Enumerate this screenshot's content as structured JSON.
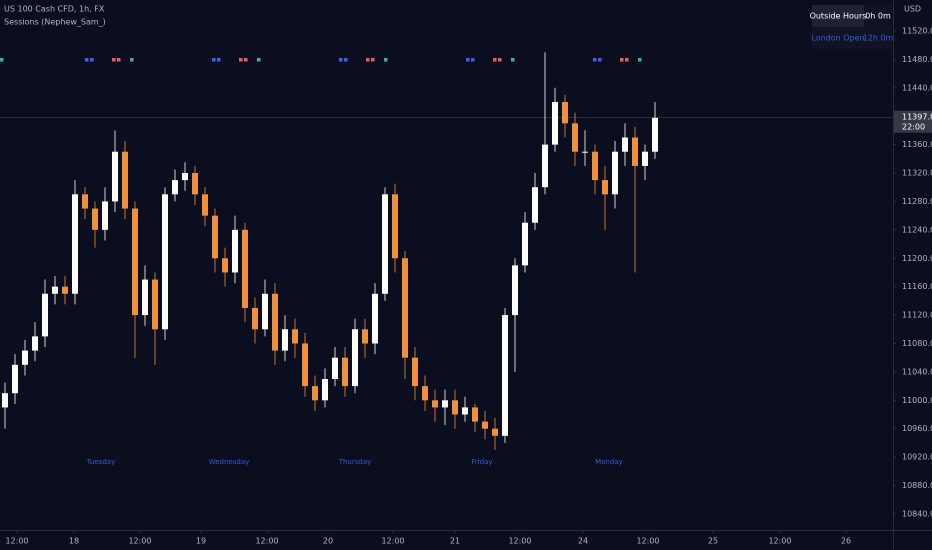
{
  "chart_data": {
    "type": "candlestick",
    "symbol": "US 100 Cash CFD, 1h, FX",
    "indicator": "Sessions (Nephew_Sam_)",
    "currency": "USD",
    "up_color": "#ffffff",
    "down_color": "#f0903a",
    "open": [
      10990,
      11010,
      11050,
      11070,
      11090,
      11150,
      11160,
      11150,
      11290,
      11270,
      11240,
      11280,
      11350,
      11270,
      11120,
      11170,
      11100,
      11290,
      11310,
      11320,
      11290,
      11260,
      11200,
      11180,
      11240,
      11130,
      11100,
      11150,
      11070,
      11100,
      11080,
      11020,
      11000,
      11030,
      11060,
      11020,
      11100,
      11080,
      11150,
      11290,
      11200,
      11060,
      11020,
      11000,
      10990,
      11000,
      10980,
      10990,
      10970,
      10960,
      10950,
      11120,
      11190,
      11250,
      11300,
      11360,
      11420,
      11390,
      11350,
      11350,
      11310,
      11290,
      11350,
      11370,
      11330,
      11350
    ],
    "high": [
      11025,
      11065,
      11085,
      11110,
      11170,
      11175,
      11175,
      11310,
      11300,
      11280,
      11300,
      11380,
      11365,
      11280,
      11190,
      11180,
      11300,
      11325,
      11335,
      11330,
      11300,
      11270,
      11215,
      11260,
      11250,
      11145,
      11170,
      11165,
      11120,
      11115,
      11095,
      11035,
      11045,
      11075,
      11075,
      11115,
      11115,
      11165,
      11300,
      11305,
      11210,
      11075,
      11035,
      11015,
      11015,
      11015,
      11005,
      10995,
      10985,
      10975,
      11130,
      11200,
      11265,
      11320,
      11490,
      11440,
      11430,
      11405,
      11380,
      11360,
      11330,
      11365,
      11390,
      11385,
      11360,
      11420
    ],
    "low": [
      10960,
      10995,
      11035,
      11055,
      11075,
      11135,
      11135,
      11135,
      11255,
      11215,
      11225,
      11265,
      11255,
      11060,
      11105,
      11050,
      11085,
      11280,
      11295,
      11275,
      11245,
      11180,
      11160,
      11165,
      11110,
      11080,
      11090,
      11050,
      11055,
      11060,
      11005,
      10985,
      10990,
      11020,
      11005,
      11010,
      11060,
      11065,
      11140,
      11180,
      11030,
      11000,
      10985,
      10970,
      10965,
      10960,
      10970,
      10955,
      10945,
      10930,
      10940,
      11040,
      11180,
      11240,
      11290,
      11350,
      11370,
      11330,
      11330,
      11290,
      11240,
      11270,
      11330,
      11180,
      11310,
      11340
    ],
    "close": [
      11010,
      11050,
      11070,
      11090,
      11150,
      11160,
      11150,
      11290,
      11270,
      11240,
      11280,
      11350,
      11270,
      11120,
      11170,
      11100,
      11290,
      11310,
      11320,
      11290,
      11260,
      11200,
      11180,
      11240,
      11130,
      11100,
      11150,
      11070,
      11100,
      11080,
      11020,
      11000,
      11030,
      11060,
      11020,
      11100,
      11080,
      11150,
      11290,
      11200,
      11060,
      11020,
      11000,
      10990,
      11000,
      10980,
      10990,
      10970,
      10960,
      10950,
      11120,
      11190,
      11250,
      11300,
      11360,
      11420,
      11390,
      11350,
      11350,
      11310,
      11290,
      11350,
      11370,
      11330,
      11350,
      11397.8
    ],
    "xlim": [
      -0.5,
      88.8
    ],
    "xticks": [
      {
        "value": 1.2,
        "label": "12:00"
      },
      {
        "value": 6.9,
        "label": "18"
      },
      {
        "value": 13.5,
        "label": "12:00"
      },
      {
        "value": 19.6,
        "label": "19"
      },
      {
        "value": 26.2,
        "label": "12:00"
      },
      {
        "value": 32.3,
        "label": "20"
      },
      {
        "value": 38.8,
        "label": "12:00"
      },
      {
        "value": 45,
        "label": "21"
      },
      {
        "value": 51.5,
        "label": "12:00"
      },
      {
        "value": 57.8,
        "label": "24"
      },
      {
        "value": 64.3,
        "label": "12:00"
      },
      {
        "value": 70.8,
        "label": "25"
      },
      {
        "value": 77.5,
        "label": "12:00"
      },
      {
        "value": 84.1,
        "label": "26"
      }
    ],
    "ylim": [
      10817.4,
      11563.6
    ],
    "yticks": [
      {
        "value": 10840,
        "label": "10840.00"
      },
      {
        "value": 10880,
        "label": "10880.00"
      },
      {
        "value": 10920,
        "label": "10920.00"
      },
      {
        "value": 10960,
        "label": "10960.00"
      },
      {
        "value": 11000,
        "label": "11000.00"
      },
      {
        "value": 11040,
        "label": "11040.00"
      },
      {
        "value": 11080,
        "label": "11080.00"
      },
      {
        "value": 11120,
        "label": "11120.00"
      },
      {
        "value": 11160,
        "label": "11160.00"
      },
      {
        "value": 11200,
        "label": "11200.00"
      },
      {
        "value": 11240,
        "label": "11240.00"
      },
      {
        "value": 11280,
        "label": "11280.00"
      },
      {
        "value": 11320,
        "label": "11320.00"
      },
      {
        "value": 11360,
        "label": "11360.00"
      },
      {
        "value": 11400,
        "label": "11400.00"
      },
      {
        "value": 11440,
        "label": "11440.00"
      },
      {
        "value": 11480,
        "label": "11480.00"
      },
      {
        "value": 11520,
        "label": "11520.00"
      }
    ],
    "last_price": {
      "value": 11397.8,
      "label": "11397.80"
    },
    "countdown": "22:00",
    "annotations": [
      {
        "text": "Tuesday",
        "x": 9.6,
        "y": 10913
      },
      {
        "text": "Wednesday",
        "x": 22.4,
        "y": 10913
      },
      {
        "text": "Thursday",
        "x": 35,
        "y": 10913
      },
      {
        "text": "Friday",
        "x": 47.7,
        "y": 10913
      },
      {
        "text": "Monday",
        "x": 60.4,
        "y": 10913
      }
    ],
    "session_table": [
      [
        "Outside Hours",
        "0h 0m"
      ],
      [
        "London Open",
        "12h 0m"
      ]
    ]
  }
}
